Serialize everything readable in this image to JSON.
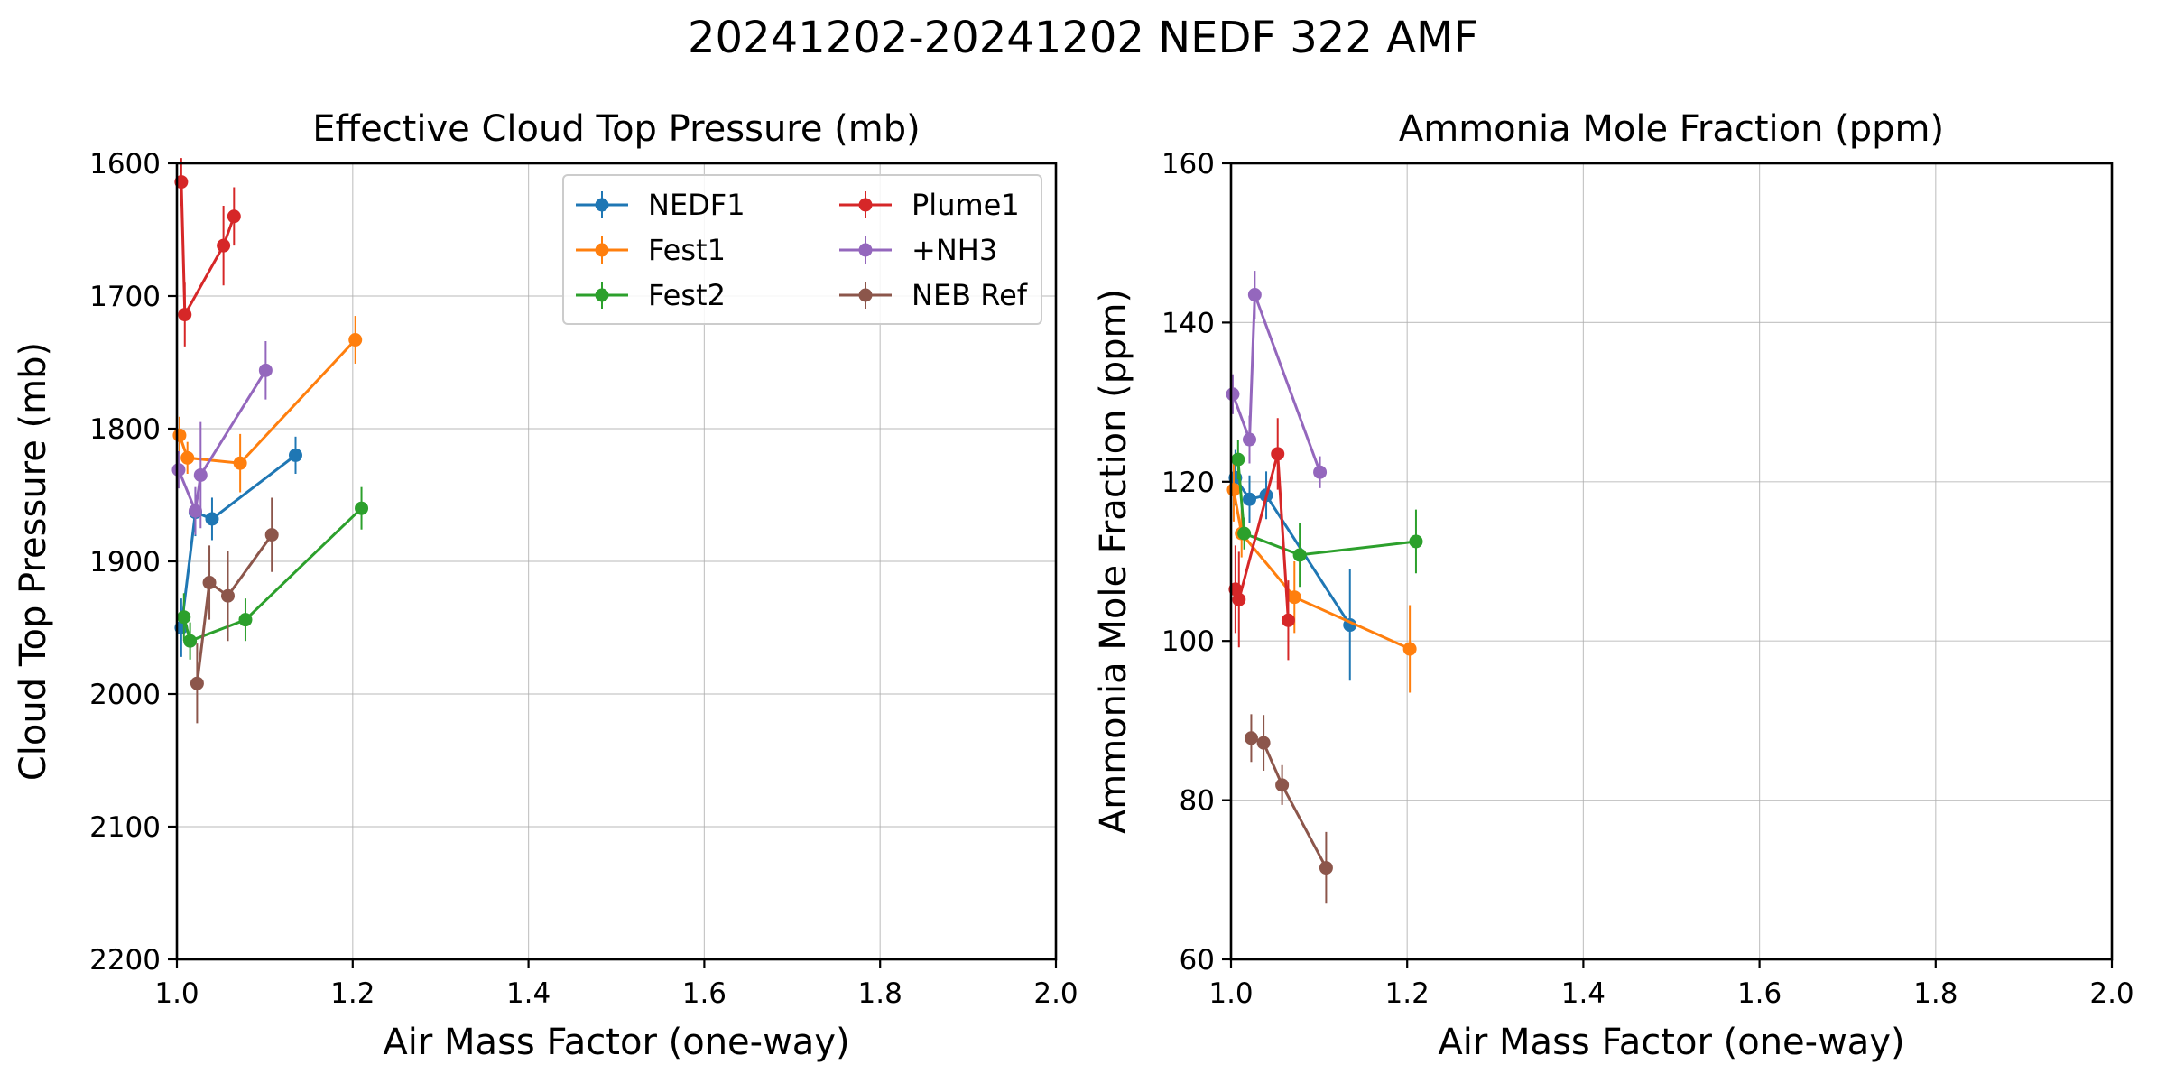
{
  "title": "20241202-20241202 NEDF 322 AMF",
  "chart_data": [
    {
      "type": "line",
      "title": "Effective Cloud Top Pressure (mb)",
      "xlabel": "Air Mass Factor (one-way)",
      "ylabel": "Cloud Top Pressure (mb)",
      "xlim": [
        1.0,
        2.0
      ],
      "ylim": [
        2200,
        1600
      ],
      "y_inverted": true,
      "xticks": [
        "1.0",
        "1.2",
        "1.4",
        "1.6",
        "1.8",
        "2.0"
      ],
      "yticks": [
        "1600",
        "1700",
        "1800",
        "1900",
        "2000",
        "2100",
        "2200"
      ],
      "grid": true,
      "legend": {
        "placement": "top-right",
        "columns": 2
      },
      "series": [
        {
          "name": "NEDF1",
          "color": "#1f77b4",
          "x": [
            1.005,
            1.021,
            1.04,
            1.135
          ],
          "y": [
            1950,
            1863,
            1868,
            1820
          ],
          "err": [
            22,
            18,
            16,
            14
          ]
        },
        {
          "name": "Fest1",
          "color": "#ff7f0e",
          "x": [
            1.003,
            1.012,
            1.072,
            1.203
          ],
          "y": [
            1805,
            1822,
            1826,
            1733
          ],
          "err": [
            14,
            12,
            22,
            18
          ]
        },
        {
          "name": "Fest2",
          "color": "#2ca02c",
          "x": [
            1.008,
            1.015,
            1.078,
            1.21
          ],
          "y": [
            1942,
            1960,
            1944,
            1860
          ],
          "err": [
            18,
            14,
            16,
            16
          ]
        },
        {
          "name": "Plume1",
          "color": "#d62728",
          "x": [
            1.005,
            1.009,
            1.053,
            1.065
          ],
          "y": [
            1614,
            1714,
            1662,
            1640
          ],
          "err": [
            18,
            24,
            30,
            22
          ]
        },
        {
          "name": "+NH3",
          "color": "#9467bd",
          "x": [
            1.002,
            1.021,
            1.027,
            1.101
          ],
          "y": [
            1831,
            1862,
            1835,
            1756
          ],
          "err": [
            14,
            18,
            40,
            22
          ]
        },
        {
          "name": "NEB Ref",
          "color": "#8c564b",
          "x": [
            1.023,
            1.037,
            1.058,
            1.108
          ],
          "y": [
            1992,
            1916,
            1926,
            1880
          ],
          "err": [
            30,
            28,
            34,
            28
          ]
        }
      ]
    },
    {
      "type": "line",
      "title": "Ammonia Mole Fraction (ppm)",
      "xlabel": "Air Mass Factor (one-way)",
      "ylabel": "Ammonia Mole Fraction (ppm)",
      "xlim": [
        1.0,
        2.0
      ],
      "ylim": [
        60,
        160
      ],
      "xticks": [
        "1.0",
        "1.2",
        "1.4",
        "1.6",
        "1.8",
        "2.0"
      ],
      "yticks": [
        "60",
        "80",
        "100",
        "120",
        "140",
        "160"
      ],
      "grid": true,
      "series": [
        {
          "name": "NEDF1",
          "color": "#1f77b4",
          "x": [
            1.005,
            1.021,
            1.04,
            1.135
          ],
          "y": [
            120.5,
            117.8,
            118.3,
            102.0
          ],
          "err": [
            3.5,
            3.0,
            3.0,
            7.0
          ]
        },
        {
          "name": "Fest1",
          "color": "#ff7f0e",
          "x": [
            1.003,
            1.012,
            1.072,
            1.203
          ],
          "y": [
            119.0,
            113.5,
            105.5,
            99.0
          ],
          "err": [
            4.0,
            3.0,
            4.5,
            5.5
          ]
        },
        {
          "name": "Fest2",
          "color": "#2ca02c",
          "x": [
            1.008,
            1.015,
            1.078,
            1.21
          ],
          "y": [
            122.8,
            113.5,
            110.8,
            112.5
          ],
          "err": [
            2.5,
            2.0,
            4.0,
            4.0
          ]
        },
        {
          "name": "Plume1",
          "color": "#d62728",
          "x": [
            1.005,
            1.009,
            1.053,
            1.065
          ],
          "y": [
            106.5,
            105.2,
            123.5,
            102.6
          ],
          "err": [
            5.5,
            6.0,
            4.5,
            5.0
          ]
        },
        {
          "name": "+NH3",
          "color": "#9467bd",
          "x": [
            1.002,
            1.021,
            1.027,
            1.101
          ],
          "y": [
            131.0,
            125.3,
            143.5,
            121.2
          ],
          "err": [
            2.5,
            3.0,
            3.0,
            2.0
          ]
        },
        {
          "name": "NEB Ref",
          "color": "#8c564b",
          "x": [
            1.023,
            1.037,
            1.058,
            1.108
          ],
          "y": [
            87.8,
            87.2,
            81.9,
            71.5
          ],
          "err": [
            3.0,
            3.5,
            2.5,
            4.5
          ]
        }
      ]
    }
  ]
}
